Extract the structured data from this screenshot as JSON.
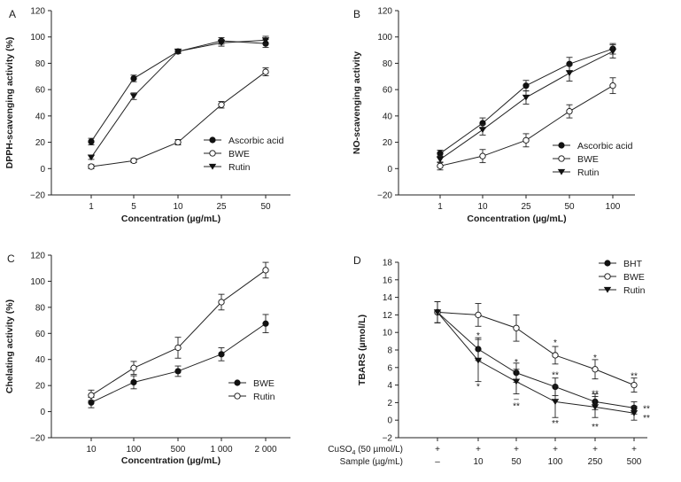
{
  "chart_data": [
    {
      "panel": "A",
      "type": "line",
      "categories": [
        "1",
        "5",
        "10",
        "25",
        "50"
      ],
      "ylabel": "DPPH-scavenging activity (%)",
      "xlabel": "Concentration (µg/mL)",
      "ylim": [
        -20,
        120
      ],
      "yticks": [
        -20,
        0,
        20,
        40,
        60,
        80,
        100,
        120
      ],
      "legend_position": "lower-right",
      "series": [
        {
          "name": "Ascorbic acid",
          "marker": "filled-circle",
          "values": [
            20.5,
            68.5,
            89,
            97,
            95
          ],
          "errors": [
            2.5,
            2.5,
            1.5,
            2.5,
            3
          ]
        },
        {
          "name": "BWE",
          "marker": "open-circle",
          "values": [
            1.5,
            6,
            20,
            48.5,
            73.5
          ],
          "errors": [
            1.5,
            1.5,
            2,
            2.5,
            3
          ]
        },
        {
          "name": "Rutin",
          "marker": "filled-triangle-down",
          "values": [
            8.5,
            55,
            89,
            95.5,
            97.5
          ],
          "errors": [
            1.5,
            2.5,
            1.5,
            2.5,
            3
          ]
        }
      ]
    },
    {
      "panel": "B",
      "type": "line",
      "categories": [
        "1",
        "10",
        "25",
        "50",
        "100"
      ],
      "ylabel": "NO-scavenging activity",
      "xlabel": "Concentration (µg/mL)",
      "ylim": [
        -20,
        120
      ],
      "yticks": [
        -20,
        0,
        20,
        40,
        60,
        80,
        100,
        120
      ],
      "legend_position": "lower-right",
      "series": [
        {
          "name": "Ascorbic acid",
          "marker": "filled-circle",
          "values": [
            11.5,
            34.5,
            63,
            79.5,
            91
          ],
          "errors": [
            2.5,
            4,
            4,
            5,
            4
          ]
        },
        {
          "name": "BWE",
          "marker": "open-circle",
          "values": [
            2,
            9.5,
            21.5,
            43.5,
            63
          ],
          "errors": [
            3,
            5,
            5,
            5,
            6
          ]
        },
        {
          "name": "Rutin",
          "marker": "filled-triangle-down",
          "values": [
            7,
            29.5,
            54,
            72.5,
            89
          ],
          "errors": [
            2.5,
            4,
            5,
            6,
            5
          ]
        }
      ]
    },
    {
      "panel": "C",
      "type": "line",
      "categories": [
        "10",
        "100",
        "500",
        "1 000",
        "2 000"
      ],
      "ylabel": "Chelating activity (%)",
      "xlabel": "Concentration (µg/mL)",
      "ylim": [
        -20,
        120
      ],
      "yticks": [
        -20,
        0,
        20,
        40,
        60,
        80,
        100,
        120
      ],
      "legend_position": "lower-right",
      "series": [
        {
          "name": "BWE",
          "marker": "filled-circle",
          "values": [
            7,
            22.5,
            31,
            44,
            67.5
          ],
          "errors": [
            4,
            5,
            4,
            5,
            7
          ]
        },
        {
          "name": "Rutin",
          "marker": "open-circle",
          "values": [
            12.5,
            33.5,
            49,
            84,
            108.5
          ],
          "errors": [
            4,
            5,
            8,
            6,
            6
          ]
        }
      ]
    },
    {
      "panel": "D",
      "type": "line",
      "categories": [
        "–",
        "10",
        "50",
        "100",
        "250",
        "500"
      ],
      "ylabel": "TBARS (µmol/L)",
      "ylim": [
        -2,
        18
      ],
      "yticks": [
        -2,
        0,
        2,
        4,
        6,
        8,
        10,
        12,
        14,
        16,
        18
      ],
      "legend_position": "top-right",
      "row_labels": {
        "cuso4_prefix": "CuSO",
        "cuso4_sub": "4",
        "cuso4_suffix": " (50 µmol/L)",
        "sample": "Sample (µg/mL)"
      },
      "cuso4_marks": [
        "+",
        "+",
        "+",
        "+",
        "+",
        "+"
      ],
      "series": [
        {
          "name": "BHT",
          "marker": "filled-circle",
          "values": [
            12.3,
            8.1,
            5.4,
            3.8,
            2.1,
            1.4
          ],
          "errors": [
            1.2,
            1.3,
            1.1,
            1.0,
            0.9,
            0.7
          ]
        },
        {
          "name": "BWE",
          "marker": "open-circle",
          "values": [
            12.3,
            12.0,
            10.5,
            7.4,
            5.8,
            4.0
          ],
          "errors": [
            1.2,
            1.3,
            1.5,
            1.0,
            1.1,
            0.8
          ]
        },
        {
          "name": "Rutin",
          "marker": "filled-triangle-down",
          "values": [
            12.3,
            6.8,
            4.4,
            2.1,
            1.5,
            0.8
          ],
          "errors": [
            1.2,
            2.4,
            1.4,
            1.8,
            1.2,
            0.8
          ]
        }
      ],
      "annotations": [
        {
          "category": "10",
          "label": "*",
          "y": 9.7
        },
        {
          "category": "10",
          "label": "*",
          "y": 3.9
        },
        {
          "category": "50",
          "label": "*",
          "y": 6.7
        },
        {
          "category": "50",
          "label": "–",
          "y": 2.5
        },
        {
          "category": "50",
          "label": "**",
          "y": 1.7
        },
        {
          "category": "100",
          "label": "*",
          "y": 8.9
        },
        {
          "category": "100",
          "label": "**",
          "y": 5.2
        },
        {
          "category": "100",
          "label": "**",
          "y": -0.3
        },
        {
          "category": "250",
          "label": "*",
          "y": 7.2
        },
        {
          "category": "250",
          "label": "**",
          "y": 3.1
        },
        {
          "category": "250",
          "label": "**",
          "y": -0.7
        },
        {
          "category": "500",
          "label": "**",
          "y": 5.1
        },
        {
          "category": "500",
          "label": "**",
          "y": 1.4
        },
        {
          "category": "500",
          "label": "**",
          "y": 0.3
        }
      ]
    }
  ]
}
